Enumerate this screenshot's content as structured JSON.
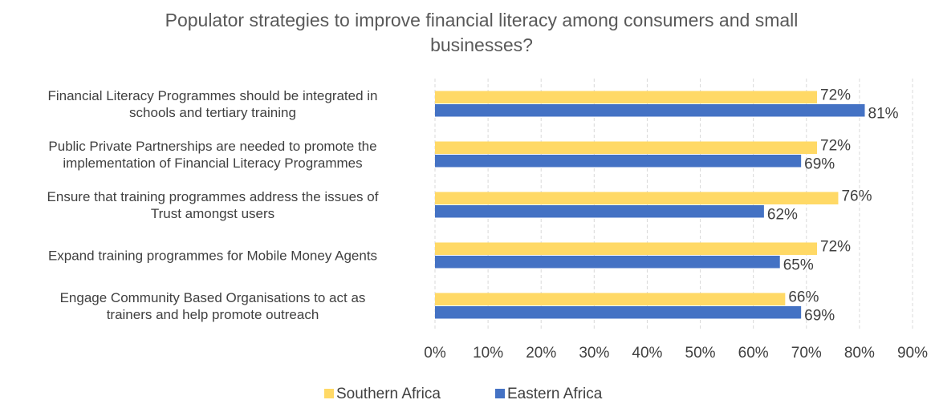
{
  "chart_data": {
    "type": "bar",
    "orientation": "horizontal",
    "title": "Populator strategies to improve financial literacy among consumers and small businesses?",
    "categories": [
      "Financial Literacy Programmes should be integrated in schools and tertiary training",
      "Public Private Partnerships are needed to promote the implementation of Financial Literacy Programmes",
      "Ensure that training programmes address the issues of Trust amongst users",
      "Expand training programmes for Mobile Money Agents",
      "Engage Community Based Organisations to act as trainers and help promote outreach"
    ],
    "series": [
      {
        "name": "Southern Africa",
        "color": "#FFD966",
        "values": [
          72,
          72,
          76,
          72,
          66
        ],
        "labels": [
          "72%",
          "72%",
          "76%",
          "72%",
          "66%"
        ]
      },
      {
        "name": "Eastern Africa",
        "color": "#4472C4",
        "values": [
          81,
          69,
          62,
          65,
          69
        ],
        "labels": [
          "81%",
          "69%",
          "62%",
          "65%",
          "69%"
        ]
      }
    ],
    "xlim": [
      0,
      90
    ],
    "xticks": [
      "0%",
      "10%",
      "20%",
      "30%",
      "40%",
      "50%",
      "60%",
      "70%",
      "80%",
      "90%"
    ],
    "grid": "vertical-dashed",
    "legend": "bottom-center",
    "xlabel": "",
    "ylabel": ""
  }
}
